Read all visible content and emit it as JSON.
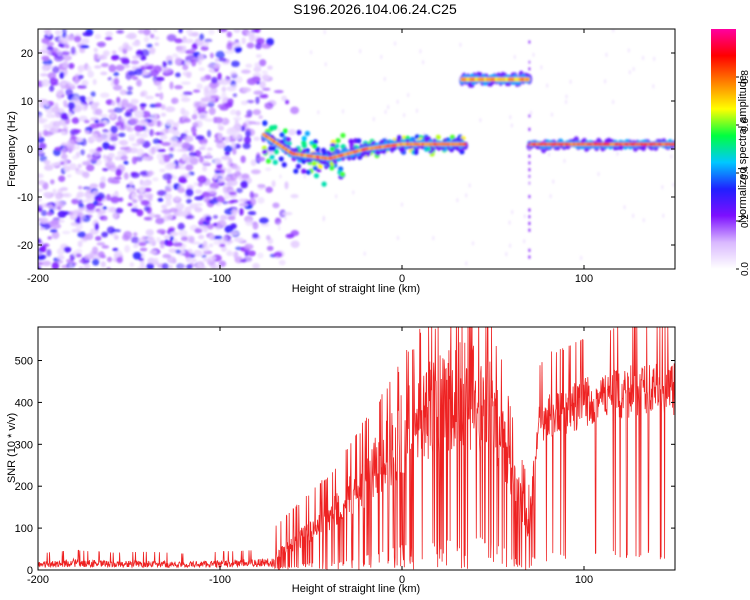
{
  "figure_title": "S196.2026.104.06.24.C25",
  "chart_data": [
    {
      "type": "heatmap",
      "title": "S196.2026.104.06.24.C25",
      "xlabel": "Height of straight line (km)",
      "ylabel": "Frequency (Hz)",
      "xlim": [
        -200,
        150
      ],
      "ylim": [
        -25,
        25
      ],
      "xticks": [
        -200,
        -100,
        0,
        100
      ],
      "yticks": [
        -20,
        -10,
        0,
        10,
        20
      ],
      "colorbar": {
        "label": "Normalized spectral amplitude",
        "range": [
          0,
          1
        ],
        "ticks": [
          0.0,
          0.2,
          0.4,
          0.6,
          0.8
        ],
        "colors": [
          "#ffffff",
          "#d9b8ff",
          "#7d10ff",
          "#2020ff",
          "#00c8ff",
          "#00ff40",
          "#ffff00",
          "#ff8000",
          "#ff0000",
          "#ff00a0"
        ]
      },
      "features": [
        {
          "name": "noise",
          "x_range": [
            -200,
            -70
          ],
          "freq_range": [
            -25,
            25
          ],
          "amplitude": 0.1
        },
        {
          "name": "main-signal",
          "x_range": [
            -76,
            35
          ],
          "freq": [
            {
              "x": -76,
              "y": 3
            },
            {
              "x": -60,
              "y": -1
            },
            {
              "x": -40,
              "y": -2
            },
            {
              "x": -20,
              "y": 0
            },
            {
              "x": 0,
              "y": 1
            },
            {
              "x": 35,
              "y": 1
            }
          ],
          "amplitude": 0.85
        },
        {
          "name": "upper-segment",
          "x_range": [
            33,
            70
          ],
          "freq": [
            {
              "x": 33,
              "y": 14.5
            },
            {
              "x": 70,
              "y": 14.5
            }
          ],
          "amplitude": 0.8
        },
        {
          "name": "right-segment",
          "x_range": [
            70,
            150
          ],
          "freq": [
            {
              "x": 70,
              "y": 1
            },
            {
              "x": 150,
              "y": 1
            }
          ],
          "amplitude": 0.9
        }
      ]
    },
    {
      "type": "line",
      "xlabel": "Height of straight line (km)",
      "ylabel": "SNR (10 * v/v)",
      "xlim": [
        -200,
        150
      ],
      "ylim": [
        0,
        580
      ],
      "xticks": [
        -200,
        -100,
        0,
        100
      ],
      "yticks": [
        0,
        100,
        200,
        300,
        400,
        500
      ],
      "color": "#ee2222",
      "series": [
        {
          "name": "SNR",
          "x": [
            -200,
            -180,
            -160,
            -140,
            -120,
            -100,
            -80,
            -70,
            -60,
            -50,
            -40,
            -30,
            -20,
            -10,
            0,
            10,
            20,
            30,
            40,
            50,
            55,
            60,
            65,
            70,
            75,
            80,
            90,
            100,
            110,
            120,
            130,
            140,
            150
          ],
          "values": [
            20,
            28,
            22,
            24,
            20,
            24,
            28,
            30,
            60,
            90,
            120,
            160,
            210,
            260,
            310,
            360,
            380,
            400,
            400,
            370,
            300,
            220,
            160,
            100,
            330,
            360,
            370,
            390,
            400,
            410,
            420,
            420,
            420
          ]
        }
      ]
    }
  ]
}
